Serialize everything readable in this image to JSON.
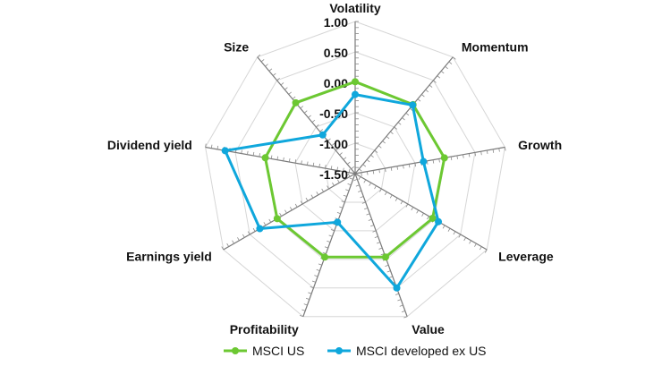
{
  "chart_data": {
    "type": "radar",
    "title": "",
    "categories": [
      "Volatility",
      "Momentum",
      "Growth",
      "Leverage",
      "Value",
      "Profitability",
      "Earnings yield",
      "Dividend yield",
      "Size"
    ],
    "rlim": [
      -1.5,
      1.0
    ],
    "ticks": [
      "1.00",
      "0.50",
      "0.00",
      "-0.50",
      "-1.00",
      "-1.50"
    ],
    "tick_values": [
      1.0,
      0.5,
      0.0,
      -0.5,
      -1.0,
      -1.5
    ],
    "grid": true,
    "legend_position": "bottom",
    "series": [
      {
        "name": "MSCI US",
        "color": "#6cc832",
        "values": [
          0.01,
          -0.02,
          -0.01,
          -0.03,
          -0.04,
          -0.04,
          -0.02,
          0.0,
          0.02
        ]
      },
      {
        "name": "MSCI developed ex US",
        "color": "#0fa7dc",
        "values": [
          -0.2,
          -0.03,
          -0.36,
          0.08,
          0.5,
          -0.65,
          0.31,
          0.67,
          -0.67
        ]
      }
    ]
  }
}
